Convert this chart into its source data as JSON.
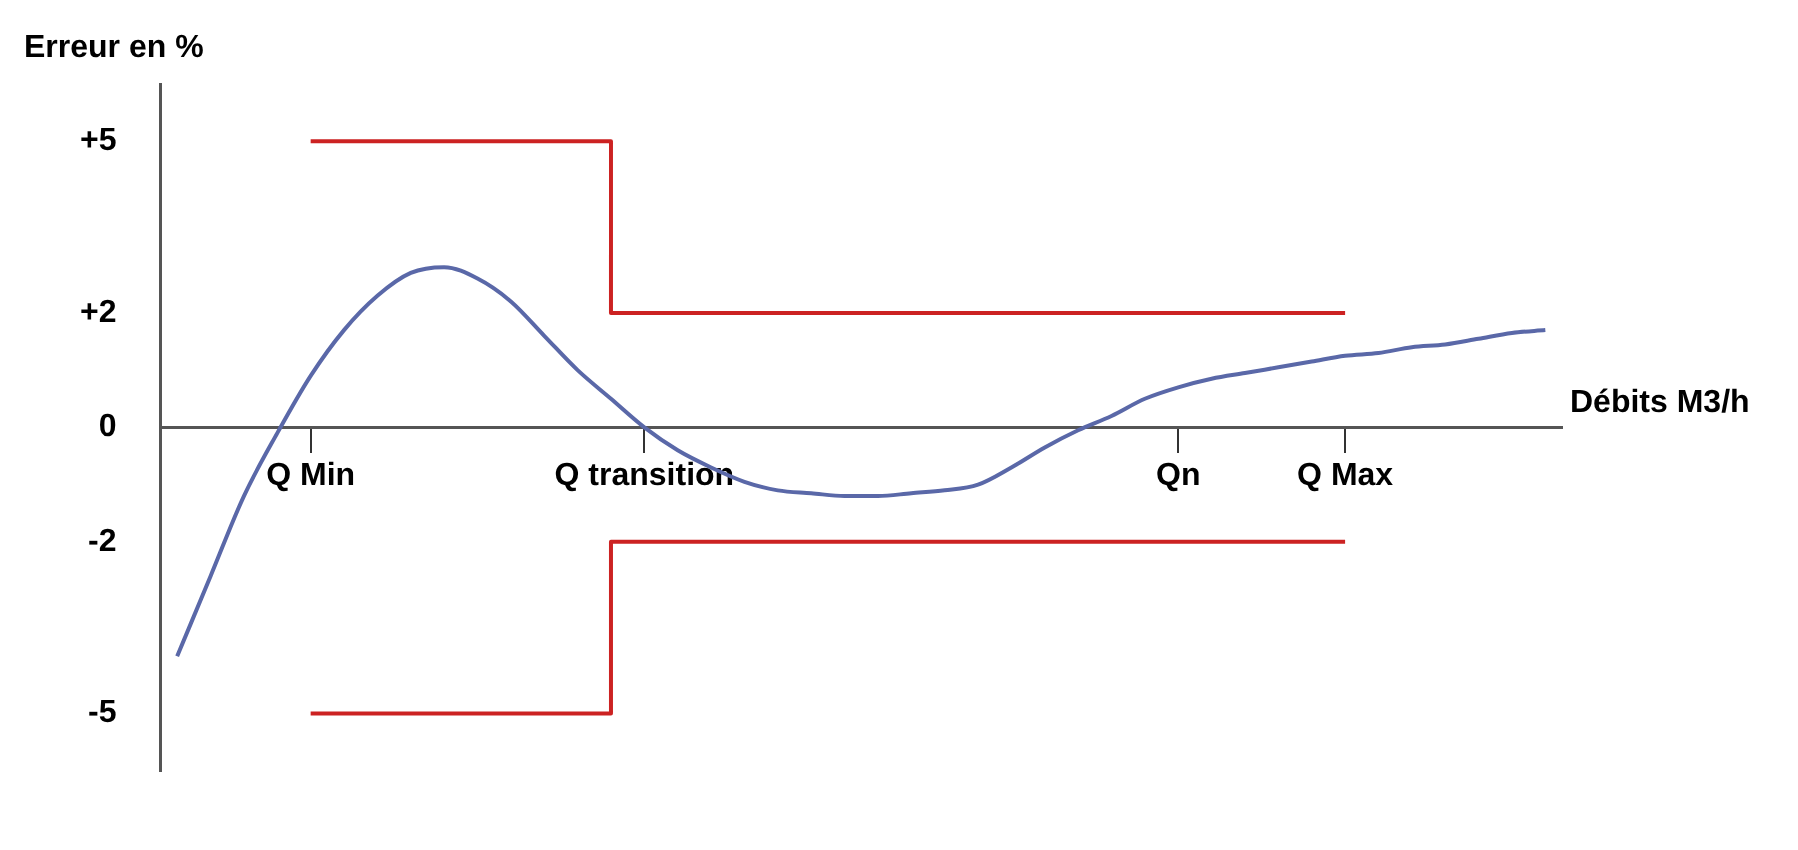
{
  "chart_data": {
    "type": "line",
    "ylabel": "Erreur en %",
    "xlabel": "Débits M3/h",
    "categories": [
      null,
      null,
      null,
      null,
      "Q Min",
      null,
      null,
      null,
      null,
      null,
      null,
      null,
      null,
      null,
      "Q transition",
      null,
      null,
      null,
      null,
      null,
      null,
      null,
      null,
      null,
      null,
      null,
      null,
      null,
      null,
      null,
      "Qn",
      null,
      null,
      null,
      null,
      "Q Max",
      null,
      null,
      null,
      null,
      null,
      null
    ],
    "series": [
      {
        "type": "line",
        "color": "#5a68a8",
        "values": [
          -4.0,
          -2.6,
          -1.2,
          -0.1,
          0.9,
          1.7,
          2.3,
          2.7,
          2.8,
          2.6,
          2.2,
          1.6,
          1.0,
          0.5,
          0.0,
          -0.4,
          -0.7,
          -0.95,
          -1.1,
          -1.15,
          -1.2,
          -1.2,
          -1.15,
          -1.1,
          -1.0,
          -0.7,
          -0.35,
          -0.05,
          0.2,
          0.5,
          0.7,
          0.85,
          0.95,
          1.05,
          1.15,
          1.25,
          1.3,
          1.4,
          1.45,
          1.55,
          1.65,
          1.7
        ]
      },
      {
        "type": "step",
        "color": "#cc2222",
        "values": [
          null,
          null,
          null,
          null,
          5,
          5,
          5,
          5,
          5,
          5,
          5,
          5,
          5,
          5,
          2,
          2,
          2,
          2,
          2,
          2,
          2,
          2,
          2,
          2,
          2,
          2,
          2,
          2,
          2,
          2,
          2,
          2,
          2,
          2,
          2,
          2,
          null,
          null,
          null,
          null,
          null,
          null
        ]
      },
      {
        "type": "step",
        "color": "#cc2222",
        "values": [
          null,
          null,
          null,
          null,
          -5,
          -5,
          -5,
          -5,
          -5,
          -5,
          -5,
          -5,
          -5,
          -5,
          -2,
          -2,
          -2,
          -2,
          -2,
          -2,
          -2,
          -2,
          -2,
          -2,
          -2,
          -2,
          -2,
          -2,
          -2,
          -2,
          -2,
          -2,
          -2,
          -2,
          -2,
          -2,
          null,
          null,
          null,
          null,
          null,
          null
        ]
      }
    ],
    "ylim": [
      -6,
      6
    ],
    "yticks": [
      {
        "value": 5,
        "label": "+5"
      },
      {
        "value": 2,
        "label": "+2"
      },
      0,
      -2,
      -5
    ],
    "grid": false,
    "legend": false,
    "marker": "none",
    "line_style": "solid"
  }
}
